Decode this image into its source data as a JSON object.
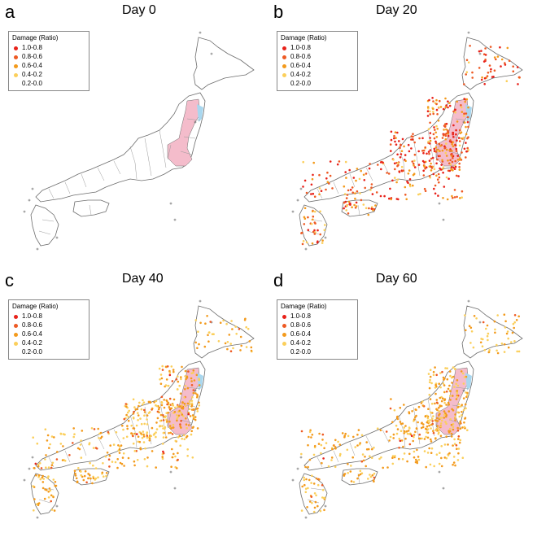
{
  "legend": {
    "title": "Damage (Ratio)",
    "classes": [
      {
        "label": "1.0-0.8",
        "color": "#e8221a"
      },
      {
        "label": "0.8-0.6",
        "color": "#ee5a24"
      },
      {
        "label": "0.6-0.4",
        "color": "#f39a1c"
      },
      {
        "label": "0.4-0.2",
        "color": "#fbcf5b"
      },
      {
        "label": "0.2-0.0",
        "color": "#ffffff"
      }
    ]
  },
  "colors": {
    "land_outline": "#6d6d6d",
    "prefecture_line": "#9a9a9a",
    "exclusion_pink": "#f4bccb",
    "coastal_blue": "#a9d7ef"
  },
  "panels": [
    {
      "letter": "a",
      "title": "Day 0",
      "dot_mix": [
        0,
        0,
        0,
        0
      ]
    },
    {
      "letter": "b",
      "title": "Day 20",
      "dot_mix": [
        0.32,
        0.3,
        0.25,
        0.13
      ]
    },
    {
      "letter": "c",
      "title": "Day 40",
      "dot_mix": [
        0.02,
        0.1,
        0.48,
        0.4
      ]
    },
    {
      "letter": "d",
      "title": "Day 60",
      "dot_mix": [
        0.01,
        0.05,
        0.54,
        0.4
      ]
    }
  ]
}
